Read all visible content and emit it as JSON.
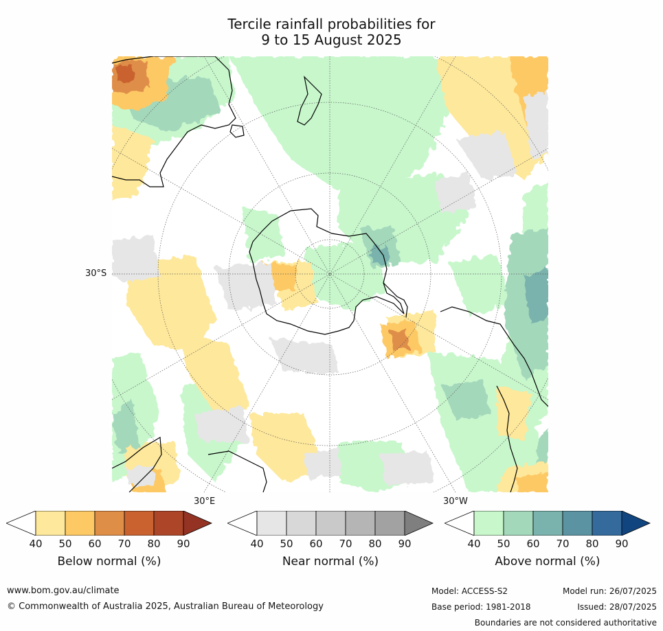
{
  "title_line1": "Tercile rainfall probabilities for",
  "title_line2": "9 to 15 August 2025",
  "map": {
    "lat_label": "30°S",
    "lon_label_east": "30°E",
    "lon_label_west": "30°W"
  },
  "colorbars": [
    {
      "name": "below",
      "title": "Below normal (%)",
      "ticks": [
        "40",
        "50",
        "60",
        "70",
        "80",
        "90"
      ],
      "colors": [
        "#ffffff",
        "#fee89b",
        "#fdc965",
        "#df8e48",
        "#c9622f",
        "#ad4628",
        "#943323"
      ]
    },
    {
      "name": "near",
      "title": "Near normal (%)",
      "ticks": [
        "40",
        "50",
        "60",
        "70",
        "80",
        "90"
      ],
      "colors": [
        "#ffffff",
        "#e6e6e6",
        "#d8d8d8",
        "#c9c9c9",
        "#b5b5b5",
        "#a2a2a2",
        "#7f7f7f"
      ]
    },
    {
      "name": "above",
      "title": "Above normal (%)",
      "ticks": [
        "40",
        "50",
        "60",
        "70",
        "80",
        "90"
      ],
      "colors": [
        "#ffffff",
        "#c8f7cc",
        "#a4d8bb",
        "#7ab3ad",
        "#5b93a3",
        "#346a9c",
        "#11457f"
      ]
    }
  ],
  "footer": {
    "website": "www.bom.gov.au/climate",
    "copyright": "© Commonwealth of Australia 2025, Australian Bureau of Meteorology",
    "model": "Model: ACCESS-S2",
    "base_period": "Base period: 1981-2018",
    "model_run": "Model run: 26/07/2025",
    "issued": "Issued: 28/07/2025",
    "disclaimer": "Boundaries are not considered authoritative"
  }
}
